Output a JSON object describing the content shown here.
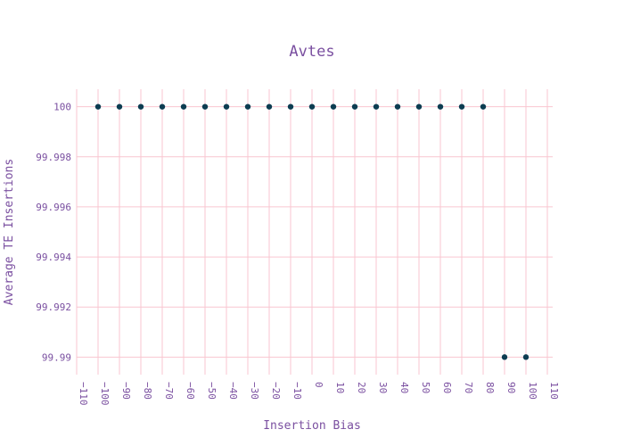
{
  "chart_data": {
    "type": "scatter",
    "title": "Avtes",
    "xlabel": "Insertion Bias",
    "ylabel": "Average TE Insertions",
    "xlim": [
      -110,
      110
    ],
    "ylim": [
      99.9893,
      100.0007
    ],
    "x_ticks": [
      -110,
      -100,
      -90,
      -80,
      -70,
      -60,
      -50,
      -40,
      -30,
      -20,
      -10,
      0,
      10,
      20,
      30,
      40,
      50,
      60,
      70,
      80,
      90,
      100,
      110
    ],
    "x_tick_labels": [
      "−110",
      "−100",
      "−90",
      "−80",
      "−70",
      "−60",
      "−50",
      "−40",
      "−30",
      "−20",
      "−10",
      "0",
      "10",
      "20",
      "30",
      "40",
      "50",
      "60",
      "70",
      "80",
      "90",
      "100",
      "110"
    ],
    "y_ticks": [
      99.99,
      99.992,
      99.994,
      99.996,
      99.998,
      100
    ],
    "y_tick_labels": [
      "99.99",
      "99.992",
      "99.994",
      "99.996",
      "99.998",
      "100"
    ],
    "grid": true,
    "marker_color": "#0d3d52",
    "grid_color": "#f9c6d0",
    "text_color": "#7a4fa0",
    "series": [
      {
        "x": [
          -100,
          -90,
          -80,
          -70,
          -60,
          -50,
          -40,
          -30,
          -20,
          -10,
          0,
          10,
          20,
          30,
          40,
          50,
          60,
          70,
          80,
          90,
          100
        ],
        "y": [
          100,
          100,
          100,
          100,
          100,
          100,
          100,
          100,
          100,
          100,
          100,
          100,
          100,
          100,
          100,
          100,
          100,
          100,
          100,
          99.99,
          99.99
        ]
      }
    ]
  }
}
